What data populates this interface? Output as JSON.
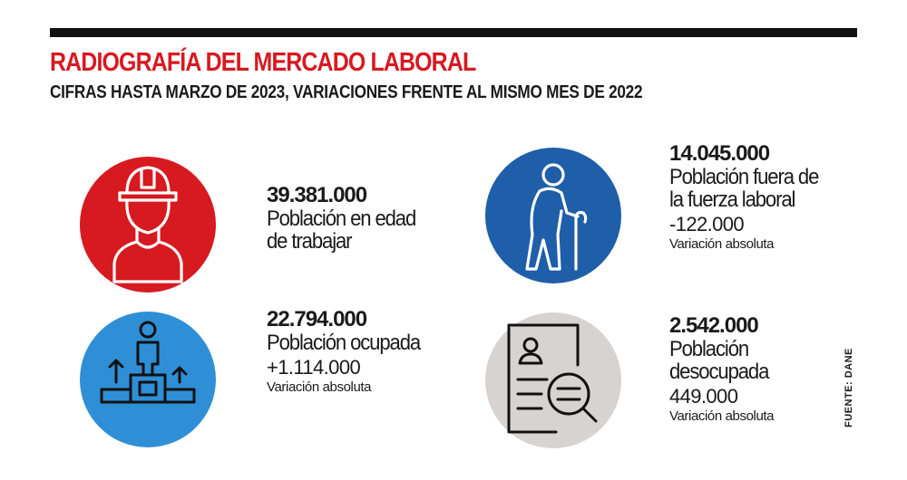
{
  "header": {
    "title": "RADIOGRAFÍA DEL MERCADO LABORAL",
    "subtitle": "CIFRAS HASTA MARZO DE 2023, VARIACIONES FRENTE AL MISMO MES DE 2022"
  },
  "colors": {
    "accent_red": "#d71920",
    "circle_dark_blue": "#1f5ea8",
    "circle_light_blue": "#2e8fd6",
    "circle_gray": "#d7d3d1"
  },
  "stats": {
    "working_age": {
      "value": "39.381.000",
      "label_line1": "Población en edad",
      "label_line2": "de trabajar",
      "icon": "worker-helmet-icon"
    },
    "outside_labor": {
      "value": "14.045.000",
      "label_line1": "Población fuera de",
      "label_line2": "la fuerza laboral",
      "variation": "-122.000",
      "variation_label": "Variación absoluta",
      "icon": "elderly-person-cane-icon"
    },
    "employed": {
      "value": "22.794.000",
      "label_line1": "Población ocupada",
      "variation": "+1.114.000",
      "variation_label": "Variación absoluta",
      "icon": "person-podium-icon"
    },
    "unemployed": {
      "value": "2.542.000",
      "label_line1": "Población",
      "label_line2": "desocupada",
      "variation": "449.000",
      "variation_label": "Variación absoluta",
      "icon": "resume-search-icon"
    }
  },
  "source": "FUENTE: DANE"
}
